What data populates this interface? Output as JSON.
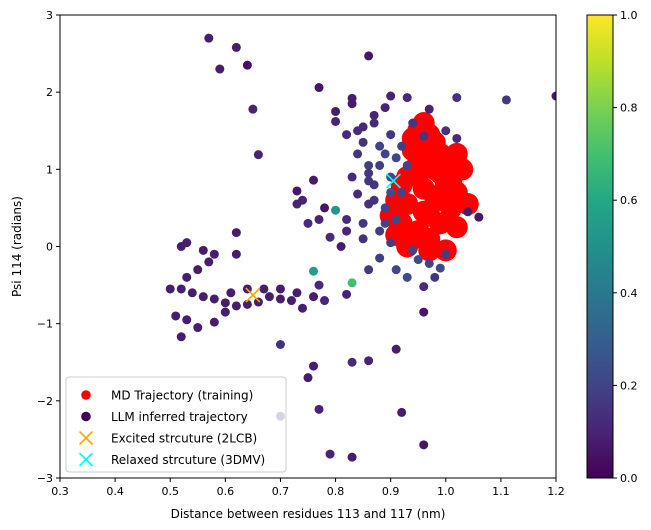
{
  "chart_data": {
    "type": "scatter",
    "xlabel": "Distance between residues 113 and 117 (nm)",
    "ylabel": "Psi 114 (radians)",
    "xlim": [
      0.3,
      1.2
    ],
    "ylim": [
      -3,
      3
    ],
    "xticks": [
      "0.3",
      "0.4",
      "0.5",
      "0.6",
      "0.7",
      "0.8",
      "0.9",
      "1.0",
      "1.1",
      "1.2"
    ],
    "yticks": [
      "−3",
      "−2",
      "−1",
      "0",
      "1",
      "2",
      "3"
    ],
    "colorbar": {
      "colormap": "viridis",
      "range": [
        0,
        1
      ],
      "ticks": [
        "0.0",
        "0.2",
        "0.4",
        "0.6",
        "0.8",
        "1.0"
      ]
    },
    "legend": {
      "position": "lower-left",
      "entries": [
        {
          "label": "MD Trajectory (training)",
          "marker": "circle",
          "color": "#ff0000"
        },
        {
          "label": "LLM inferred trajectory",
          "marker": "circle",
          "color": "#440154"
        },
        {
          "label": "Excited strcuture (2LCB)",
          "marker": "x",
          "color": "#ffa500"
        },
        {
          "label": "Relaxed strcuture (3DMV)",
          "marker": "x",
          "color": "#00ffff"
        }
      ]
    },
    "series": [
      {
        "name": "MD Trajectory (training)",
        "color": "#ff0000",
        "points": [
          [
            0.93,
            0.0
          ],
          [
            0.95,
            0.2
          ],
          [
            0.97,
            0.4
          ],
          [
            0.99,
            0.6
          ],
          [
            1.0,
            0.8
          ],
          [
            0.98,
            1.0
          ],
          [
            0.96,
            1.2
          ],
          [
            0.94,
            1.4
          ],
          [
            0.92,
            0.3
          ],
          [
            0.91,
            0.6
          ],
          [
            0.93,
            0.9
          ],
          [
            0.95,
            1.1
          ],
          [
            0.97,
            0.1
          ],
          [
            0.99,
            0.3
          ],
          [
            1.01,
            0.5
          ],
          [
            1.02,
            0.7
          ],
          [
            1.03,
            1.0
          ],
          [
            1.02,
            1.2
          ],
          [
            0.96,
            1.6
          ],
          [
            0.95,
            1.5
          ],
          [
            0.98,
            1.35
          ],
          [
            1.0,
            1.1
          ],
          [
            0.94,
            0.1
          ],
          [
            0.97,
            -0.05
          ],
          [
            1.0,
            -0.05
          ],
          [
            0.92,
            0.8
          ],
          [
            0.9,
            0.4
          ],
          [
            0.91,
            0.15
          ],
          [
            0.96,
            0.75
          ],
          [
            0.99,
            0.95
          ],
          [
            1.04,
            0.55
          ],
          [
            1.02,
            0.25
          ],
          [
            0.94,
            1.25
          ],
          [
            0.97,
            1.45
          ],
          [
            0.93,
            0.55
          ],
          [
            0.96,
            0.45
          ],
          [
            0.98,
            0.65
          ],
          [
            1.01,
            0.85
          ],
          [
            0.95,
            0.95
          ],
          [
            0.99,
            1.2
          ]
        ]
      },
      {
        "name": "LLM inferred trajectory",
        "points": [
          [
            0.57,
            2.7,
            0.08
          ],
          [
            0.62,
            2.58,
            0.08
          ],
          [
            0.64,
            2.35,
            0.04
          ],
          [
            0.59,
            2.3,
            0.08
          ],
          [
            0.65,
            1.78,
            0.1
          ],
          [
            0.66,
            1.19,
            0.1
          ],
          [
            0.86,
            2.47,
            0.06
          ],
          [
            0.83,
            1.92,
            0.08
          ],
          [
            0.77,
            2.06,
            0.06
          ],
          [
            0.9,
            1.95,
            0.1
          ],
          [
            0.93,
            1.93,
            0.12
          ],
          [
            1.02,
            1.93,
            0.14
          ],
          [
            1.11,
            1.9,
            0.16
          ],
          [
            1.2,
            1.95,
            0.06
          ],
          [
            0.94,
            1.6,
            0.15
          ],
          [
            0.96,
            1.43,
            0.16
          ],
          [
            0.8,
            1.62,
            0.1
          ],
          [
            0.82,
            1.45,
            0.12
          ],
          [
            0.73,
            0.72,
            0.06
          ],
          [
            0.76,
            0.86,
            0.07
          ],
          [
            0.78,
            0.5,
            0.06
          ],
          [
            0.77,
            0.35,
            0.1
          ],
          [
            0.79,
            0.12,
            0.12
          ],
          [
            0.8,
            0.47,
            0.52
          ],
          [
            0.84,
            0.68,
            0.12
          ],
          [
            0.86,
            1.05,
            0.18
          ],
          [
            0.88,
            1.3,
            0.2
          ],
          [
            0.87,
            0.6,
            0.14
          ],
          [
            0.85,
            0.3,
            0.16
          ],
          [
            0.88,
            0.2,
            0.18
          ],
          [
            0.9,
            0.9,
            0.22
          ],
          [
            0.89,
            0.5,
            0.2
          ],
          [
            0.86,
            0.85,
            0.16
          ],
          [
            0.84,
            1.2,
            0.15
          ],
          [
            0.83,
            0.9,
            0.12
          ],
          [
            0.82,
            0.2,
            0.1
          ],
          [
            0.81,
            0.0,
            0.08
          ],
          [
            0.87,
            1.7,
            0.1
          ],
          [
            0.85,
            1.55,
            0.12
          ],
          [
            0.91,
            1.15,
            0.2
          ],
          [
            0.92,
            0.7,
            0.2
          ],
          [
            0.9,
            0.05,
            0.18
          ],
          [
            0.95,
            -0.17,
            0.22
          ],
          [
            0.97,
            -0.22,
            0.2
          ],
          [
            0.98,
            -0.4,
            0.16
          ],
          [
            1.0,
            -0.1,
            0.18
          ],
          [
            1.04,
            0.45,
            0.08
          ],
          [
            1.06,
            0.38,
            0.06
          ],
          [
            0.91,
            -0.3,
            0.2
          ],
          [
            0.93,
            -0.4,
            0.22
          ],
          [
            0.96,
            -0.52,
            0.12
          ],
          [
            0.96,
            -0.85,
            0.06
          ],
          [
            0.91,
            -1.33,
            0.08
          ],
          [
            0.86,
            -1.48,
            0.1
          ],
          [
            0.83,
            -1.5,
            0.12
          ],
          [
            0.92,
            -2.15,
            0.08
          ],
          [
            0.96,
            -2.57,
            0.06
          ],
          [
            0.83,
            -2.73,
            0.08
          ],
          [
            0.79,
            -2.69,
            0.1
          ],
          [
            0.77,
            -2.11,
            0.1
          ],
          [
            0.7,
            -2.2,
            0.08
          ],
          [
            0.76,
            -1.55,
            0.08
          ],
          [
            0.75,
            -1.7,
            0.08
          ],
          [
            0.7,
            -1.27,
            0.14
          ],
          [
            0.76,
            -0.32,
            0.56
          ],
          [
            0.83,
            -0.47,
            0.7
          ],
          [
            0.77,
            -0.5,
            0.12
          ],
          [
            0.78,
            -0.7,
            0.1
          ],
          [
            0.74,
            -0.8,
            0.08
          ],
          [
            0.72,
            -0.7,
            0.08
          ],
          [
            0.7,
            -0.68,
            0.08
          ],
          [
            0.68,
            -0.65,
            0.08
          ],
          [
            0.66,
            -0.72,
            0.08
          ],
          [
            0.64,
            -0.75,
            0.08
          ],
          [
            0.62,
            -0.77,
            0.08
          ],
          [
            0.6,
            -0.73,
            0.08
          ],
          [
            0.58,
            -0.68,
            0.08
          ],
          [
            0.56,
            -0.65,
            0.08
          ],
          [
            0.54,
            -0.6,
            0.08
          ],
          [
            0.52,
            -0.55,
            0.08
          ],
          [
            0.5,
            -0.55,
            0.08
          ],
          [
            0.53,
            -0.4,
            0.08
          ],
          [
            0.55,
            -0.3,
            0.08
          ],
          [
            0.57,
            -0.2,
            0.08
          ],
          [
            0.58,
            -0.1,
            0.08
          ],
          [
            0.56,
            -0.05,
            0.08
          ],
          [
            0.53,
            0.05,
            0.08
          ],
          [
            0.52,
            0.0,
            0.08
          ],
          [
            0.62,
            0.18,
            0.08
          ],
          [
            0.62,
            -0.1,
            0.08
          ],
          [
            0.6,
            -0.85,
            0.08
          ],
          [
            0.58,
            -0.98,
            0.08
          ],
          [
            0.55,
            -1.05,
            0.08
          ],
          [
            0.52,
            -1.17,
            0.08
          ],
          [
            0.51,
            -0.9,
            0.08
          ],
          [
            0.53,
            -0.95,
            0.08
          ],
          [
            0.7,
            -0.55,
            0.08
          ],
          [
            0.73,
            -0.6,
            0.08
          ],
          [
            0.76,
            -0.65,
            0.08
          ],
          [
            0.67,
            -0.55,
            0.08
          ],
          [
            0.64,
            -0.55,
            0.08
          ],
          [
            0.61,
            -0.6,
            0.08
          ],
          [
            0.82,
            -0.62,
            0.1
          ],
          [
            0.73,
            0.55,
            0.1
          ],
          [
            0.75,
            0.3,
            0.12
          ],
          [
            0.74,
            0.6,
            0.1
          ],
          [
            0.83,
            1.85,
            0.08
          ],
          [
            0.8,
            1.75,
            0.08
          ],
          [
            0.87,
            1.6,
            0.12
          ],
          [
            0.9,
            1.45,
            0.16
          ],
          [
            0.89,
            1.8,
            0.1
          ],
          [
            1.0,
            1.5,
            0.14
          ],
          [
            1.02,
            1.4,
            0.12
          ],
          [
            0.88,
            -0.15,
            0.18
          ],
          [
            0.86,
            -0.3,
            0.16
          ],
          [
            0.94,
            -0.05,
            0.2
          ],
          [
            0.99,
            -0.28,
            0.22
          ],
          [
            0.97,
            1.78,
            0.1
          ],
          [
            0.85,
            0.1,
            0.14
          ],
          [
            0.82,
            0.35,
            0.12
          ],
          [
            0.86,
            0.95,
            0.16
          ],
          [
            0.89,
            1.2,
            0.2
          ],
          [
            0.9,
            0.7,
            0.24
          ],
          [
            0.91,
            0.35,
            0.22
          ],
          [
            0.88,
            1.05,
            0.18
          ],
          [
            0.87,
            0.8,
            0.16
          ],
          [
            0.85,
            1.35,
            0.14
          ],
          [
            0.84,
            1.5,
            0.12
          ],
          [
            0.92,
            1.3,
            0.18
          ],
          [
            0.93,
            1.05,
            0.2
          ],
          [
            0.89,
            0.3,
            0.2
          ],
          [
            0.86,
            0.55,
            0.14
          ]
        ]
      }
    ],
    "annotations": [
      {
        "label": "Excited strcuture (2LCB)",
        "x": 0.65,
        "y": -0.63,
        "marker": "x",
        "color": "#ffa500"
      },
      {
        "label": "Relaxed strcuture (3DMV)",
        "x": 0.905,
        "y": 0.85,
        "marker": "x",
        "color": "#00ffff"
      }
    ]
  }
}
